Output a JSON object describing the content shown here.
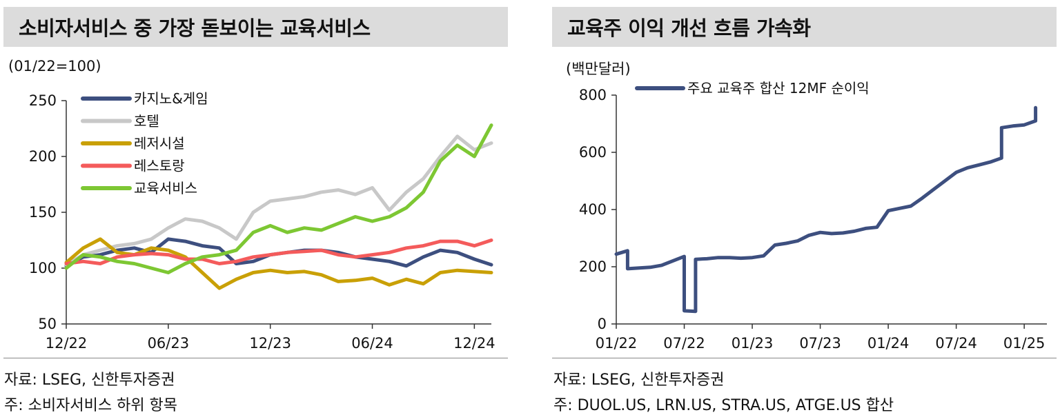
{
  "left_panel": {
    "title": "소비자서비스 중 가장 돋보이는 교육서비스",
    "unit": "(01/22=100)",
    "source": "자료: LSEG, 신한투자증권",
    "note": "주: 소비자서비스 하위 항목"
  },
  "right_panel": {
    "title": "교육주 이익 개선 흐름 가속화",
    "unit": "(백만달러)",
    "source": "자료: LSEG, 신한투자증권",
    "note": "주: DUOL.US, LRN.US, STRA.US, ATGE.US 합산"
  },
  "chart_data": [
    {
      "type": "line",
      "title": "소비자서비스 중 가장 돋보이는 교육서비스",
      "ylabel": "(01/22=100)",
      "ylim": [
        50,
        250
      ],
      "yticks": [
        50,
        100,
        150,
        200,
        250
      ],
      "xlim": [
        "2022-12",
        "2025-01"
      ],
      "xticks": [
        "12/22",
        "06/23",
        "12/23",
        "06/24",
        "12/24"
      ],
      "legend_position": "top-left",
      "grid": false,
      "series": [
        {
          "name": "카지노&게임",
          "color": "#3d4f7f",
          "x": [
            "2022-12",
            "2023-01",
            "2023-02",
            "2023-03",
            "2023-04",
            "2023-05",
            "2023-06",
            "2023-07",
            "2023-08",
            "2023-09",
            "2023-10",
            "2023-11",
            "2023-12",
            "2024-01",
            "2024-02",
            "2024-03",
            "2024-04",
            "2024-05",
            "2024-06",
            "2024-07",
            "2024-08",
            "2024-09",
            "2024-10",
            "2024-11",
            "2024-12",
            "2025-01"
          ],
          "values": [
            102,
            110,
            112,
            116,
            118,
            114,
            126,
            124,
            120,
            118,
            104,
            106,
            112,
            114,
            116,
            116,
            114,
            110,
            108,
            106,
            102,
            110,
            116,
            114,
            108,
            103
          ]
        },
        {
          "name": "호텔",
          "color": "#c8c8c8",
          "x": [
            "2022-12",
            "2023-01",
            "2023-02",
            "2023-03",
            "2023-04",
            "2023-05",
            "2023-06",
            "2023-07",
            "2023-08",
            "2023-09",
            "2023-10",
            "2023-11",
            "2023-12",
            "2024-01",
            "2024-02",
            "2024-03",
            "2024-04",
            "2024-05",
            "2024-06",
            "2024-07",
            "2024-08",
            "2024-09",
            "2024-10",
            "2024-11",
            "2024-12",
            "2025-01"
          ],
          "values": [
            103,
            112,
            116,
            120,
            122,
            126,
            136,
            144,
            142,
            136,
            126,
            150,
            160,
            162,
            164,
            168,
            170,
            166,
            172,
            152,
            168,
            180,
            200,
            218,
            206,
            212
          ]
        },
        {
          "name": "레저시설",
          "color": "#c9a006",
          "x": [
            "2022-12",
            "2023-01",
            "2023-02",
            "2023-03",
            "2023-04",
            "2023-05",
            "2023-06",
            "2023-07",
            "2023-08",
            "2023-09",
            "2023-10",
            "2023-11",
            "2023-12",
            "2024-01",
            "2024-02",
            "2024-03",
            "2024-04",
            "2024-05",
            "2024-06",
            "2024-07",
            "2024-08",
            "2024-09",
            "2024-10",
            "2024-11",
            "2024-12",
            "2025-01"
          ],
          "values": [
            105,
            118,
            126,
            114,
            112,
            118,
            116,
            110,
            96,
            82,
            90,
            96,
            98,
            96,
            97,
            94,
            88,
            89,
            91,
            85,
            90,
            86,
            96,
            98,
            97,
            96
          ]
        },
        {
          "name": "레스토랑",
          "color": "#f45b5b",
          "x": [
            "2022-12",
            "2023-01",
            "2023-02",
            "2023-03",
            "2023-04",
            "2023-05",
            "2023-06",
            "2023-07",
            "2023-08",
            "2023-09",
            "2023-10",
            "2023-11",
            "2023-12",
            "2024-01",
            "2024-02",
            "2024-03",
            "2024-04",
            "2024-05",
            "2024-06",
            "2024-07",
            "2024-08",
            "2024-09",
            "2024-10",
            "2024-11",
            "2024-12",
            "2025-01"
          ],
          "values": [
            104,
            106,
            104,
            110,
            112,
            113,
            112,
            108,
            108,
            104,
            106,
            110,
            112,
            114,
            115,
            116,
            112,
            110,
            112,
            114,
            118,
            120,
            124,
            124,
            120,
            125
          ]
        },
        {
          "name": "교육서비스",
          "color": "#7dc733",
          "x": [
            "2022-12",
            "2023-01",
            "2023-02",
            "2023-03",
            "2023-04",
            "2023-05",
            "2023-06",
            "2023-07",
            "2023-08",
            "2023-09",
            "2023-10",
            "2023-11",
            "2023-12",
            "2024-01",
            "2024-02",
            "2024-03",
            "2024-04",
            "2024-05",
            "2024-06",
            "2024-07",
            "2024-08",
            "2024-09",
            "2024-10",
            "2024-11",
            "2024-12",
            "2025-01"
          ],
          "values": [
            100,
            112,
            110,
            106,
            104,
            100,
            96,
            104,
            110,
            112,
            116,
            132,
            138,
            132,
            136,
            134,
            140,
            146,
            142,
            146,
            154,
            168,
            196,
            210,
            200,
            228
          ]
        }
      ]
    },
    {
      "type": "line",
      "title": "교육주 이익 개선 흐름 가속화",
      "ylabel": "(백만달러)",
      "ylim": [
        0,
        800
      ],
      "yticks": [
        0,
        200,
        400,
        600,
        800
      ],
      "xlim": [
        "2022-01",
        "2025-03"
      ],
      "xticks": [
        "01/22",
        "07/22",
        "01/23",
        "07/23",
        "01/24",
        "07/24",
        "01/25"
      ],
      "legend_position": "top-left",
      "grid": false,
      "series": [
        {
          "name": "주요 교육주 합산 12MF 순이익",
          "color": "#3d4f7f",
          "x": [
            "2022-01",
            "2022-02",
            "2022-02",
            "2022-04",
            "2022-05",
            "2022-07",
            "2022-07",
            "2022-08",
            "2022-08",
            "2022-09",
            "2022-10",
            "2022-11",
            "2022-12",
            "2023-01",
            "2023-02",
            "2023-03",
            "2023-04",
            "2023-05",
            "2023-06",
            "2023-07",
            "2023-08",
            "2023-09",
            "2023-10",
            "2023-11",
            "2023-12",
            "2024-01",
            "2024-02",
            "2024-03",
            "2024-04",
            "2024-05",
            "2024-06",
            "2024-07",
            "2024-08",
            "2024-09",
            "2024-10",
            "2024-11",
            "2024-11",
            "2024-12",
            "2025-01",
            "2025-02",
            "2025-02"
          ],
          "values": [
            244,
            256,
            193,
            198,
            205,
            236,
            46,
            44,
            226,
            228,
            232,
            232,
            230,
            232,
            238,
            276,
            282,
            290,
            310,
            320,
            316,
            318,
            324,
            334,
            338,
            396,
            404,
            412,
            440,
            470,
            500,
            530,
            546,
            556,
            566,
            580,
            686,
            692,
            696,
            710,
            756
          ]
        }
      ]
    }
  ]
}
